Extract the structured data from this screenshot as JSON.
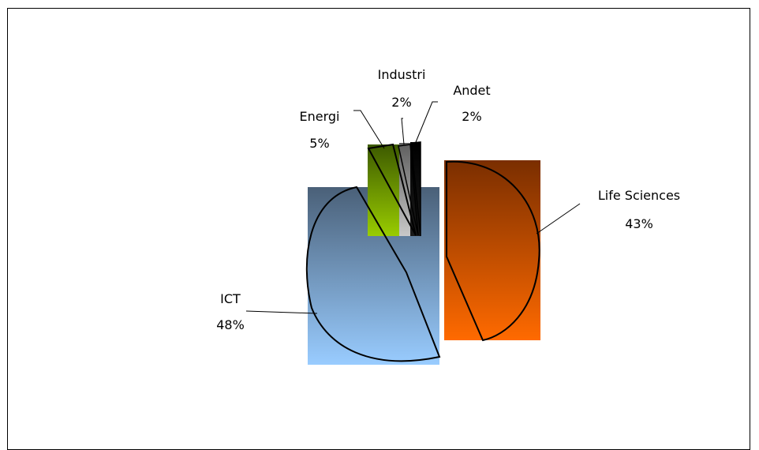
{
  "chart_data": {
    "type": "pie",
    "title": "",
    "exploded": true,
    "slices": [
      {
        "label": "ICT",
        "percent_label": "48%",
        "value": 48,
        "color_top": "#4a6078",
        "color_bottom": "#99ccff"
      },
      {
        "label": "Life Sciences",
        "percent_label": "43%",
        "value": 43,
        "color_top": "#7a2e00",
        "color_bottom": "#ff6a00"
      },
      {
        "label": "Energi",
        "percent_label": "5%",
        "value": 5,
        "color_top": "#3d5a00",
        "color_bottom": "#99cc00"
      },
      {
        "label": "Industri",
        "percent_label": "2%",
        "value": 2,
        "color_top": "#5e5e5e",
        "color_bottom": "#c8c8c8"
      },
      {
        "label": "Andet",
        "percent_label": "2%",
        "value": 2,
        "color_top": "#000000",
        "color_bottom": "#1a1a1a"
      }
    ],
    "legend": "none",
    "data_labels": "category and percentage with leader lines"
  }
}
